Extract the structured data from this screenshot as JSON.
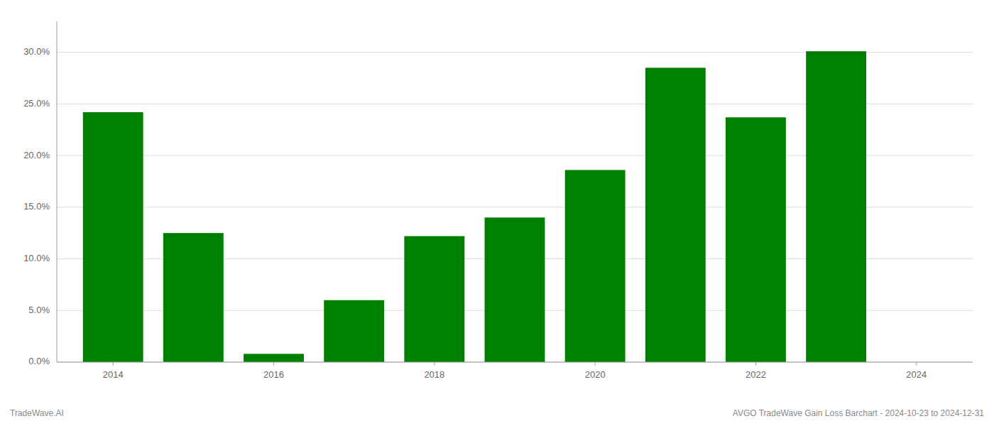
{
  "chart_data": {
    "type": "bar",
    "x": [
      2014,
      2015,
      2016,
      2017,
      2018,
      2019,
      2020,
      2021,
      2022,
      2023
    ],
    "values": [
      0.242,
      0.125,
      0.008,
      0.06,
      0.122,
      0.14,
      0.186,
      0.285,
      0.237,
      0.301
    ],
    "color": "#008000",
    "xlim": [
      2013.3,
      2024.7
    ],
    "xticks": [
      2014,
      2016,
      2018,
      2020,
      2022,
      2024
    ],
    "ylim": [
      0,
      0.33
    ],
    "yticks": [
      {
        "value": 0.0,
        "label": "0.0%"
      },
      {
        "value": 0.05,
        "label": "5.0%"
      },
      {
        "value": 0.1,
        "label": "10.0%"
      },
      {
        "value": 0.15,
        "label": "15.0%"
      },
      {
        "value": 0.2,
        "label": "20.0%"
      },
      {
        "value": 0.25,
        "label": "25.0%"
      },
      {
        "value": 0.3,
        "label": "30.0%"
      }
    ],
    "grid": true,
    "annotations": [
      "TradeWave.AI",
      "AVGO TradeWave Gain Loss Barchart - 2024-10-23 to 2024-12-31"
    ]
  }
}
